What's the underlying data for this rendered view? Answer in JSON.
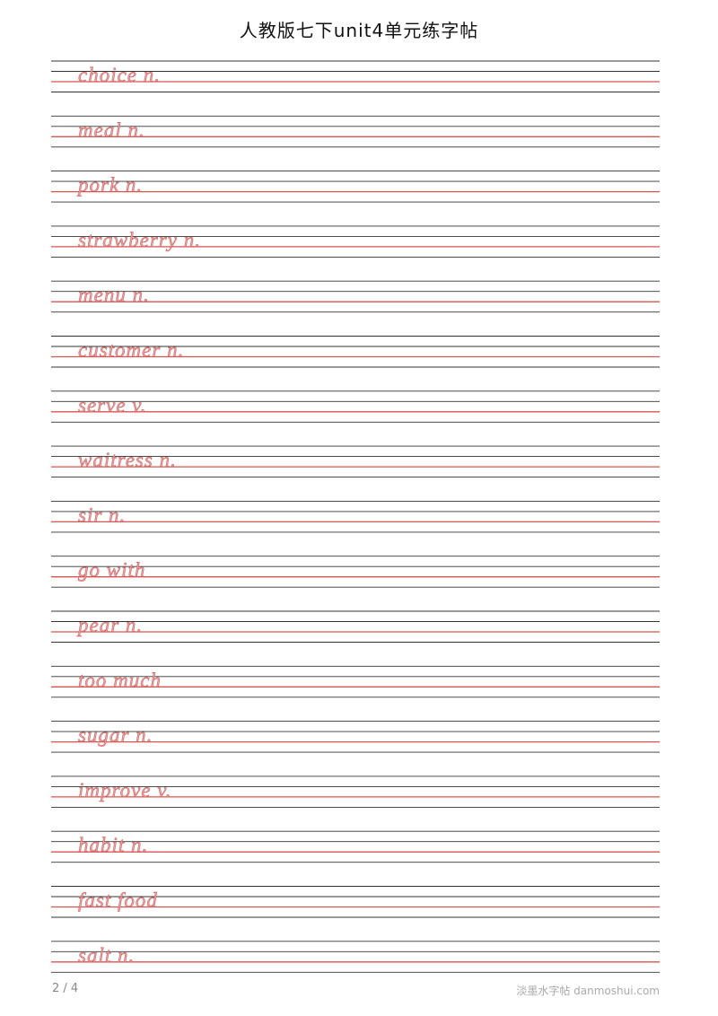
{
  "header": {
    "title": "人教版七下unit4单元练字帖"
  },
  "rows": [
    "choice n.",
    "meal n.",
    "pork n.",
    "strawberry n.",
    "menu n.",
    "customer n.",
    "serve v.",
    "waitress n.",
    "sir n.",
    "go with",
    "pear n.",
    "too much",
    "sugar n.",
    "improve v.",
    "habit n.",
    "fast food",
    "salt n."
  ],
  "footer": {
    "page": "2 / 4",
    "brand": "淡墨水字帖 danmoshui.com"
  }
}
